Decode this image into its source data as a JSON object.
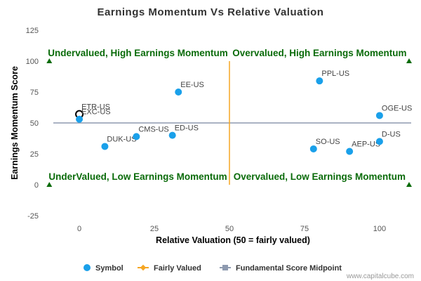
{
  "chart_data": {
    "type": "scatter",
    "title": "Earnings Momentum Vs Relative Valuation",
    "xlabel": "Relative Valuation (50 = fairly valued)",
    "ylabel": "Earnings Momentum Score",
    "xlim": [
      -11,
      111
    ],
    "ylim": [
      -25,
      125
    ],
    "xticks": [
      0,
      25,
      50,
      75,
      100
    ],
    "yticks": [
      -25,
      0,
      25,
      50,
      75,
      100,
      125
    ],
    "grid": false,
    "legend_position": "bottom",
    "points": [
      {
        "label": "ETR-US",
        "x": 0,
        "y": 57,
        "highlighted": true
      },
      {
        "label": "EXC-US",
        "x": 0,
        "y": 53
      },
      {
        "label": "DUK-US",
        "x": 8.5,
        "y": 31
      },
      {
        "label": "CMS-US",
        "x": 19,
        "y": 39
      },
      {
        "label": "ED-US",
        "x": 31,
        "y": 40
      },
      {
        "label": "EE-US",
        "x": 33,
        "y": 75
      },
      {
        "label": "PPL-US",
        "x": 80,
        "y": 84
      },
      {
        "label": "SO-US",
        "x": 78,
        "y": 29
      },
      {
        "label": "AEP-US",
        "x": 90,
        "y": 27
      },
      {
        "label": "OGE-US",
        "x": 100,
        "y": 56
      },
      {
        "label": "D-US",
        "x": 100,
        "y": 35
      }
    ],
    "fairly_valued_x": 50,
    "midpoint_y": 50,
    "quadrant_labels": {
      "top_left": "Undervalued, High Earnings Momentum",
      "top_right": "Overvalued, High Earnings Momentum",
      "bottom_left": "UnderValued, Low Earnings Momentum",
      "bottom_right": "Overvalued, Low Earnings Momentum"
    },
    "legend": [
      "Symbol",
      "Fairly Valued",
      "Fundamental Score Midpoint"
    ],
    "colors": {
      "symbol": "#1aa0ea",
      "fairly_valued": "#f5a623",
      "midpoint": "#8e9aaf",
      "quadrant_text": "#0a6b0a",
      "marker": "#0a6b0a"
    }
  },
  "credit": "www.capitalcube.com"
}
